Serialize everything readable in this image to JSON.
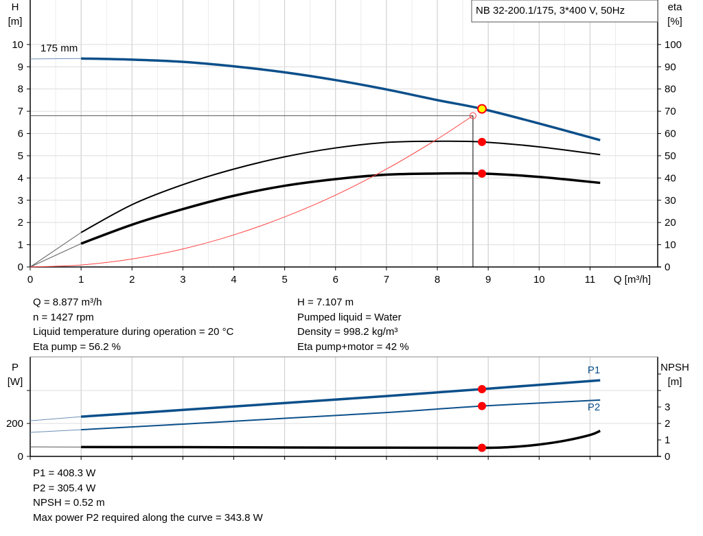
{
  "chart_data": [
    {
      "type": "line",
      "title": "NB 32-200.1/175, 3*400 V, 50Hz",
      "xlabel": "Q [m³/h]",
      "ylabel": "H\n[m]",
      "ylabel_right": "eta\n[%]",
      "xlim": [
        0,
        12.33
      ],
      "ylim": [
        0,
        12
      ],
      "ylim_right": [
        0,
        120
      ],
      "xticks": [
        0,
        1,
        2,
        3,
        4,
        5,
        6,
        7,
        8,
        9,
        10,
        11
      ],
      "yticks": [
        0,
        1,
        2,
        3,
        4,
        5,
        6,
        7,
        8,
        9,
        10
      ],
      "yticks_right": [
        0,
        10,
        20,
        30,
        40,
        50,
        60,
        70,
        80,
        90,
        100
      ],
      "grid": true,
      "curve_label": "175 mm",
      "series": [
        {
          "key": "H",
          "axis": "left",
          "color": "#0b4f8a",
          "x": [
            1,
            2,
            3,
            4,
            5,
            6,
            7,
            8,
            8.877,
            10,
            11.2
          ],
          "y": [
            9.37,
            9.32,
            9.22,
            9.02,
            8.75,
            8.4,
            7.98,
            7.5,
            7.107,
            6.45,
            5.7
          ],
          "extrapolated": {
            "x": [
              0,
              1
            ],
            "y": [
              9.35,
              9.37
            ]
          }
        },
        {
          "key": "eta_pump",
          "axis": "right",
          "color": "#000000",
          "x": [
            1,
            2,
            3,
            4,
            5,
            6,
            7,
            8,
            8.877,
            10,
            11.2
          ],
          "y": [
            15.5,
            28,
            37,
            44,
            49.5,
            53.5,
            56,
            56.5,
            56.2,
            54,
            50.5
          ],
          "extrapolated": {
            "x": [
              0,
              1
            ],
            "y": [
              0,
              15.5
            ]
          }
        },
        {
          "key": "eta_pump_motor",
          "axis": "right",
          "color": "#000000",
          "x": [
            1,
            2,
            3,
            4,
            5,
            6,
            7,
            8,
            8.877,
            10,
            11.2
          ],
          "y": [
            10.5,
            19,
            26,
            32,
            36.5,
            39.5,
            41.5,
            42,
            42,
            40.5,
            37.8
          ],
          "extrapolated": {
            "x": [
              0,
              1
            ],
            "y": [
              0,
              10.5
            ]
          }
        },
        {
          "key": "system_curve",
          "axis": "left",
          "color": "#ff4040",
          "x": [
            0,
            1,
            2,
            3,
            4,
            5,
            6,
            7,
            8,
            8.7
          ],
          "y": [
            0,
            0.09,
            0.36,
            0.81,
            1.44,
            2.25,
            3.23,
            4.4,
            5.75,
            6.8
          ]
        }
      ],
      "setpoint": {
        "Q": 8.7,
        "H": 6.8
      },
      "duty_points": [
        {
          "x": 8.877,
          "y": 7.107,
          "axis": "left"
        },
        {
          "x": 8.877,
          "y": 56.2,
          "axis": "right"
        },
        {
          "x": 8.877,
          "y": 42,
          "axis": "right"
        }
      ]
    },
    {
      "type": "line",
      "ylabel": "P\n[W]",
      "ylabel_right": "NPSH\n[m]",
      "xlim": [
        0,
        12.33
      ],
      "ylim": [
        0,
        604
      ],
      "ylim_right": [
        0,
        6.04
      ],
      "yticks": [
        0,
        200,
        400
      ],
      "ytick_labels": [
        "0",
        "200",
        ""
      ],
      "yticks_right": [
        0,
        1,
        2,
        3,
        4,
        5
      ],
      "ytick_labels_right": [
        "0",
        "1",
        "2",
        "3",
        "",
        ""
      ],
      "grid": true,
      "series": [
        {
          "key": "P1",
          "name": "P1",
          "axis": "left",
          "color": "#0b4f8a",
          "x": [
            1,
            3,
            5,
            7,
            8.877,
            11.2
          ],
          "y": [
            241,
            282,
            324,
            366,
            408.3,
            462
          ],
          "extrapolated": {
            "x": [
              0,
              1
            ],
            "y": [
              216,
              241
            ]
          }
        },
        {
          "key": "P2",
          "name": "P2",
          "axis": "left",
          "color": "#0b4f8a",
          "x": [
            1,
            3,
            5,
            7,
            8.877,
            11.2
          ],
          "y": [
            162,
            196,
            231,
            266,
            305.4,
            342
          ],
          "extrapolated": {
            "x": [
              0,
              1
            ],
            "y": [
              146,
              162
            ]
          }
        },
        {
          "key": "NPSH",
          "axis": "right",
          "color": "#000000",
          "x": [
            1,
            3,
            5,
            7,
            8.877,
            9.5,
            10,
            10.5,
            11,
            11.2
          ],
          "y": [
            0.57,
            0.56,
            0.54,
            0.53,
            0.52,
            0.58,
            0.72,
            0.95,
            1.3,
            1.55
          ],
          "extrapolated": {
            "x": [
              0,
              1
            ],
            "y": [
              0.58,
              0.57
            ]
          }
        }
      ],
      "duty_points": [
        {
          "x": 8.877,
          "y": 408.3,
          "axis": "left"
        },
        {
          "x": 8.877,
          "y": 305.4,
          "axis": "left"
        },
        {
          "x": 8.877,
          "y": 0.52,
          "axis": "right"
        }
      ]
    }
  ],
  "info_top_left": [
    "Q = 8.877 m³/h",
    "n = 1427 rpm",
    "Liquid temperature during operation = 20 °C",
    "Eta pump = 56.2 %"
  ],
  "info_top_right": [
    "H = 7.107 m",
    "Pumped liquid = Water",
    "Density = 998.2 kg/m³",
    "Eta pump+motor = 42 %"
  ],
  "info_bottom": [
    "P1 = 408.3 W",
    "P2 = 305.4 W",
    "NPSH = 0.52 m",
    "Max power P2 required along the curve = 343.8 W"
  ]
}
